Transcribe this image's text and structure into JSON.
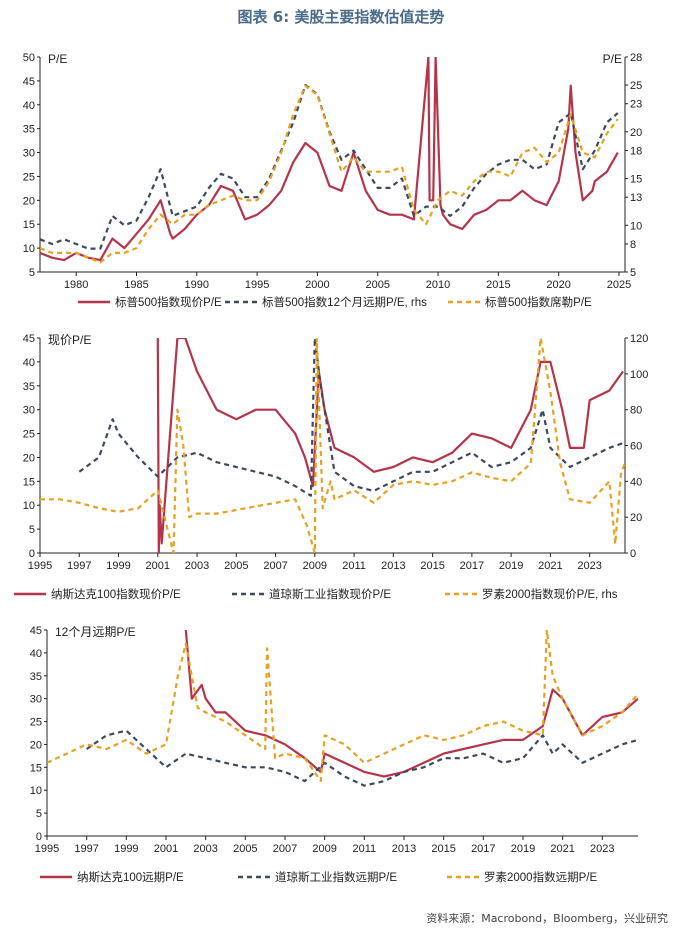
{
  "figure_title": "图表 6:  美股主要指数估值走势",
  "source_note": "资料来源：Macrobond，Bloomberg，兴业研究",
  "chart_data": [
    {
      "type": "line",
      "x_ticks": [
        "1980",
        "1985",
        "1990",
        "1995",
        "2000",
        "2005",
        "2010",
        "2015",
        "2020",
        "2025"
      ],
      "xlim": [
        1977,
        2025.5
      ],
      "ylim_left": [
        5,
        50
      ],
      "ylim_right": [
        5,
        28
      ],
      "y_ticks_left": [
        "5",
        "10",
        "15",
        "20",
        "25",
        "30",
        "35",
        "40",
        "45",
        "50"
      ],
      "y_ticks_right": [
        "5",
        "8",
        "10",
        "13",
        "15",
        "18",
        "20",
        "23",
        "25",
        "28"
      ],
      "ylabel_left": "P/E",
      "ylabel_right": "P/E",
      "series": [
        {
          "name": "标普500指数现价P/E",
          "axis": "left",
          "color": "#b5344a",
          "dash": "solid",
          "x": [
            1977,
            1978,
            1979,
            1980,
            1981,
            1982,
            1983,
            1984,
            1985,
            1986,
            1987,
            1987.8,
            1988,
            1989,
            1990,
            1991,
            1992,
            1993,
            1994,
            1995,
            1996,
            1997,
            1998,
            1999,
            2000,
            2001,
            2002,
            2003,
            2004,
            2005,
            2006,
            2007,
            2008,
            2009.2,
            2009.3,
            2009.6,
            2009.8,
            2010.2,
            2010.4,
            2011,
            2012,
            2013,
            2014,
            2015,
            2016,
            2017,
            2018,
            2019,
            2020,
            2020.8,
            2021,
            2021.4,
            2022,
            2022.8,
            2023,
            2024,
            2024.9
          ],
          "y": [
            9,
            8,
            7.5,
            9,
            8,
            7.5,
            12,
            10,
            13,
            16,
            20,
            13,
            12,
            14,
            17,
            19,
            23,
            22,
            16,
            17,
            19,
            22,
            28,
            32,
            30,
            23,
            22,
            30,
            22,
            18,
            17,
            17,
            16,
            50,
            20,
            20,
            50,
            19,
            17,
            15,
            14,
            17,
            18,
            20,
            20,
            22,
            20,
            19,
            24,
            35,
            44,
            30,
            20,
            22,
            24,
            26,
            30
          ]
        },
        {
          "name": "标普500指数12个月远期P/E, rhs",
          "axis": "right",
          "color": "#3d4a5c",
          "dash": "5,4",
          "x": [
            1977,
            1978,
            1979,
            1980,
            1981,
            1982,
            1983,
            1984,
            1985,
            1986,
            1987,
            1988,
            1989,
            1990,
            1991,
            1992,
            1993,
            1994,
            1995,
            1996,
            1997,
            1998,
            1999,
            2000,
            2001,
            2002,
            2003,
            2004,
            2005,
            2006,
            2007,
            2008,
            2009,
            2010,
            2011,
            2012,
            2013,
            2014,
            2015,
            2016,
            2017,
            2018,
            2019,
            2020,
            2021,
            2022,
            2023,
            2024,
            2024.9
          ],
          "y": [
            8.5,
            8,
            8.5,
            8,
            7.5,
            7.5,
            11,
            10,
            10.5,
            13,
            16,
            11,
            11.5,
            12,
            14,
            15.5,
            15,
            13,
            13,
            15,
            18,
            21,
            25,
            24,
            20,
            17,
            18,
            16,
            14,
            14,
            15,
            11,
            12,
            12,
            11,
            12,
            14,
            15.5,
            16.5,
            17,
            17,
            16,
            16.5,
            21,
            22,
            16,
            18,
            21,
            22
          ]
        },
        {
          "name": "标普500指数席勒P/E",
          "axis": "left",
          "color": "#e8a020",
          "dash": "5,4",
          "x": [
            1977,
            1978,
            1979,
            1980,
            1981,
            1982,
            1983,
            1984,
            1985,
            1986,
            1987,
            1988,
            1989,
            1990,
            1991,
            1992,
            1993,
            1994,
            1995,
            1996,
            1997,
            1998,
            1999,
            2000,
            2001,
            2002,
            2003,
            2004,
            2005,
            2006,
            2007,
            2008,
            2009,
            2010,
            2011,
            2012,
            2013,
            2014,
            2015,
            2016,
            2017,
            2018,
            2019,
            2020,
            2021,
            2022,
            2023,
            2024,
            2024.9
          ],
          "y": [
            10,
            9,
            9,
            9,
            8,
            7,
            9,
            9,
            10,
            14,
            17,
            15,
            17,
            17,
            19,
            20,
            21,
            20,
            20,
            24,
            30,
            38,
            44,
            42,
            34,
            26,
            29,
            26,
            26,
            26,
            27,
            18,
            15,
            20,
            22,
            21,
            24,
            26,
            26,
            25,
            30,
            31,
            28,
            30,
            38,
            30,
            29,
            34,
            37
          ]
        }
      ]
    },
    {
      "type": "line",
      "x_ticks": [
        "1995",
        "1997",
        "1999",
        "2001",
        "2003",
        "2005",
        "2007",
        "2009",
        "2011",
        "2013",
        "2015",
        "2017",
        "2019",
        "2021",
        "2023"
      ],
      "xlim": [
        1995,
        2024.8
      ],
      "ylim_left": [
        0,
        45
      ],
      "ylim_right": [
        0,
        120
      ],
      "y_ticks_left": [
        "0",
        "5",
        "10",
        "15",
        "20",
        "25",
        "30",
        "35",
        "40",
        "45"
      ],
      "y_ticks_right": [
        "0",
        "20",
        "40",
        "60",
        "80",
        "100",
        "120"
      ],
      "ylabel_left": "现价P/E",
      "series": [
        {
          "name": "纳斯达克100指数现价P/E",
          "axis": "left",
          "color": "#b5344a",
          "dash": "solid",
          "x": [
            2001,
            2001.05,
            2001.1,
            2001.2,
            2002,
            2002.4,
            2003,
            2003.5,
            2004,
            2005,
            2006,
            2007,
            2008,
            2008.5,
            2008.9,
            2009.2,
            2009.5,
            2010,
            2011,
            2012,
            2013,
            2014,
            2015,
            2016,
            2017,
            2018,
            2019,
            2020,
            2020.5,
            2021,
            2021.6,
            2022,
            2022.7,
            2023,
            2024,
            2024.7
          ],
          "y": [
            45,
            0,
            10,
            2,
            45,
            45,
            38,
            34,
            30,
            28,
            30,
            30,
            25,
            20,
            14,
            38,
            30,
            22,
            20,
            17,
            18,
            20,
            19,
            21,
            25,
            24,
            22,
            30,
            40,
            40,
            30,
            22,
            22,
            32,
            34,
            38
          ]
        },
        {
          "name": "道琼斯工业指数现价P/E",
          "axis": "left",
          "color": "#3d4a5c",
          "dash": "5,4",
          "x": [
            1997,
            1998,
            1998.7,
            1999,
            2000,
            2001,
            2002,
            2003,
            2004,
            2005,
            2006,
            2007,
            2008,
            2008.8,
            2009,
            2009.3,
            2010,
            2011,
            2012,
            2013,
            2014,
            2015,
            2016,
            2017,
            2018,
            2019,
            2020,
            2020.6,
            2021,
            2022,
            2023,
            2024,
            2024.7
          ],
          "y": [
            17,
            20,
            28,
            25,
            20,
            16,
            20,
            21,
            19,
            18,
            17,
            16,
            14,
            12,
            45,
            35,
            17,
            14,
            13,
            15,
            17,
            17,
            19,
            21,
            18,
            19,
            22,
            30,
            22,
            18,
            20,
            22,
            23
          ]
        },
        {
          "name": "罗素2000指数现价P/E, rhs",
          "axis": "right",
          "color": "#e8a020",
          "dash": "5,4",
          "x": [
            1995,
            1996,
            1997,
            1998,
            1999,
            2000,
            2001,
            2001.8,
            2002,
            2002.3,
            2002.6,
            2003,
            2004,
            2005,
            2006,
            2007,
            2008,
            2008.6,
            2009,
            2009.1,
            2009.4,
            2009.8,
            2010,
            2011,
            2012,
            2013,
            2014,
            2015,
            2016,
            2017,
            2018,
            2019,
            2020,
            2020.5,
            2021,
            2021.5,
            2022,
            2023,
            2024,
            2024.3,
            2024.6,
            2024.8
          ],
          "y": [
            30,
            30,
            28,
            25,
            23,
            25,
            35,
            0,
            80,
            60,
            20,
            22,
            22,
            24,
            26,
            28,
            30,
            15,
            0,
            120,
            25,
            40,
            30,
            35,
            28,
            38,
            40,
            38,
            40,
            45,
            42,
            40,
            50,
            120,
            90,
            50,
            30,
            28,
            40,
            5,
            45,
            50
          ]
        }
      ]
    },
    {
      "type": "line",
      "x_ticks": [
        "1995",
        "1997",
        "1999",
        "2001",
        "2003",
        "2005",
        "2007",
        "2009",
        "2011",
        "2013",
        "2015",
        "2017",
        "2019",
        "2021",
        "2023"
      ],
      "xlim": [
        1995,
        2024.8
      ],
      "ylim": [
        0,
        45
      ],
      "y_ticks": [
        "0",
        "5",
        "10",
        "15",
        "20",
        "25",
        "30",
        "35",
        "40",
        "45"
      ],
      "ylabel": "12个月远期P/E",
      "series": [
        {
          "name": "纳斯达克100远期P/E",
          "color": "#b5344a",
          "dash": "solid",
          "x": [
            2002,
            2002.3,
            2002.8,
            2003,
            2003.5,
            2004,
            2004.5,
            2005,
            2006,
            2007,
            2008,
            2008.8,
            2009,
            2010,
            2011,
            2012,
            2013,
            2014,
            2015,
            2016,
            2017,
            2018,
            2019,
            2020,
            2020.5,
            2021,
            2022,
            2023,
            2024,
            2024.8
          ],
          "y": [
            45,
            30,
            33,
            30,
            27,
            27,
            25,
            23,
            22,
            20,
            17,
            14,
            18,
            16,
            14,
            13,
            14,
            16,
            18,
            19,
            20,
            21,
            21,
            24,
            32,
            30,
            22,
            26,
            27,
            30
          ]
        },
        {
          "name": "道琼斯工业指数远期P/E",
          "color": "#3d4a5c",
          "dash": "5,4",
          "x": [
            1997,
            1998,
            1999,
            2000,
            2001,
            2002,
            2003,
            2004,
            2005,
            2006,
            2007,
            2008,
            2009,
            2010,
            2011,
            2012,
            2013,
            2014,
            2015,
            2016,
            2017,
            2018,
            2019,
            2020,
            2020.5,
            2021,
            2022,
            2023,
            2024,
            2024.8
          ],
          "y": [
            19,
            22,
            23,
            19,
            15,
            18,
            17,
            16,
            15,
            15,
            14,
            12,
            16,
            13,
            11,
            12,
            14,
            15,
            17,
            17,
            18,
            16,
            17,
            22,
            18,
            20,
            16,
            18,
            20,
            21
          ]
        },
        {
          "name": "罗素2000指数远期P/E",
          "color": "#e8a020",
          "dash": "5,4",
          "x": [
            1995,
            1996,
            1997,
            1998,
            1999,
            2000,
            2001,
            2001.6,
            2002,
            2002.6,
            2003,
            2004,
            2005,
            2006,
            2006.1,
            2006.5,
            2007,
            2008,
            2008.8,
            2009,
            2010,
            2011,
            2012,
            2013,
            2014,
            2015,
            2016,
            2017,
            2018,
            2019,
            2020,
            2020.2,
            2020.5,
            2021,
            2022,
            2023,
            2024,
            2024.8
          ],
          "y": [
            16,
            18,
            20,
            19,
            21,
            18,
            20,
            35,
            42,
            28,
            27,
            25,
            22,
            19,
            41,
            17,
            18,
            17,
            12,
            22,
            20,
            16,
            18,
            20,
            22,
            21,
            22,
            24,
            25,
            23,
            22,
            45,
            35,
            30,
            22,
            24,
            27,
            31
          ]
        }
      ]
    }
  ]
}
